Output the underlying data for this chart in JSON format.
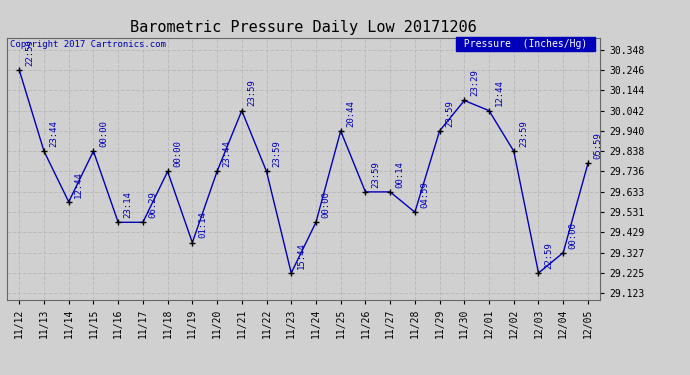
{
  "title": "Barometric Pressure Daily Low 20171206",
  "ylabel": "Pressure  (Inches/Hg)",
  "background_color": "#d0d0d0",
  "line_color": "#0000bb",
  "marker_color": "#000000",
  "text_color": "#0000bb",
  "legend_bg": "#0000bb",
  "legend_text_color": "#ffffff",
  "copyright_text": "Copyright 2017 Cartronics.com",
  "dates": [
    "11/12",
    "11/13",
    "11/14",
    "11/15",
    "11/16",
    "11/17",
    "11/18",
    "11/19",
    "11/20",
    "11/21",
    "11/22",
    "11/23",
    "11/24",
    "11/25",
    "11/26",
    "11/27",
    "11/28",
    "11/29",
    "11/30",
    "12/01",
    "12/02",
    "12/03",
    "12/04",
    "12/05"
  ],
  "values": [
    30.246,
    29.838,
    29.583,
    29.838,
    29.48,
    29.48,
    29.736,
    29.378,
    29.736,
    30.042,
    29.736,
    29.225,
    29.48,
    29.94,
    29.633,
    29.633,
    29.531,
    29.94,
    30.093,
    30.042,
    29.838,
    29.225,
    29.327,
    29.776
  ],
  "time_labels": [
    "22:59",
    "23:44",
    "12:44",
    "00:00",
    "23:14",
    "06:29",
    "00:00",
    "01:14",
    "23:44",
    "23:59",
    "23:59",
    "15:44",
    "00:00",
    "20:44",
    "23:59",
    "00:14",
    "04:59",
    "23:59",
    "23:29",
    "12:44",
    "23:59",
    "22:59",
    "00:00",
    "05:59"
  ],
  "ylim_min": 29.089,
  "ylim_max": 30.41,
  "ytick_values": [
    29.123,
    29.225,
    29.327,
    29.429,
    29.531,
    29.633,
    29.736,
    29.838,
    29.94,
    30.042,
    30.144,
    30.246,
    30.348
  ],
  "grid_color": "#bbbbbb",
  "title_fontsize": 11,
  "tick_fontsize": 7,
  "annotation_fontsize": 6.5
}
